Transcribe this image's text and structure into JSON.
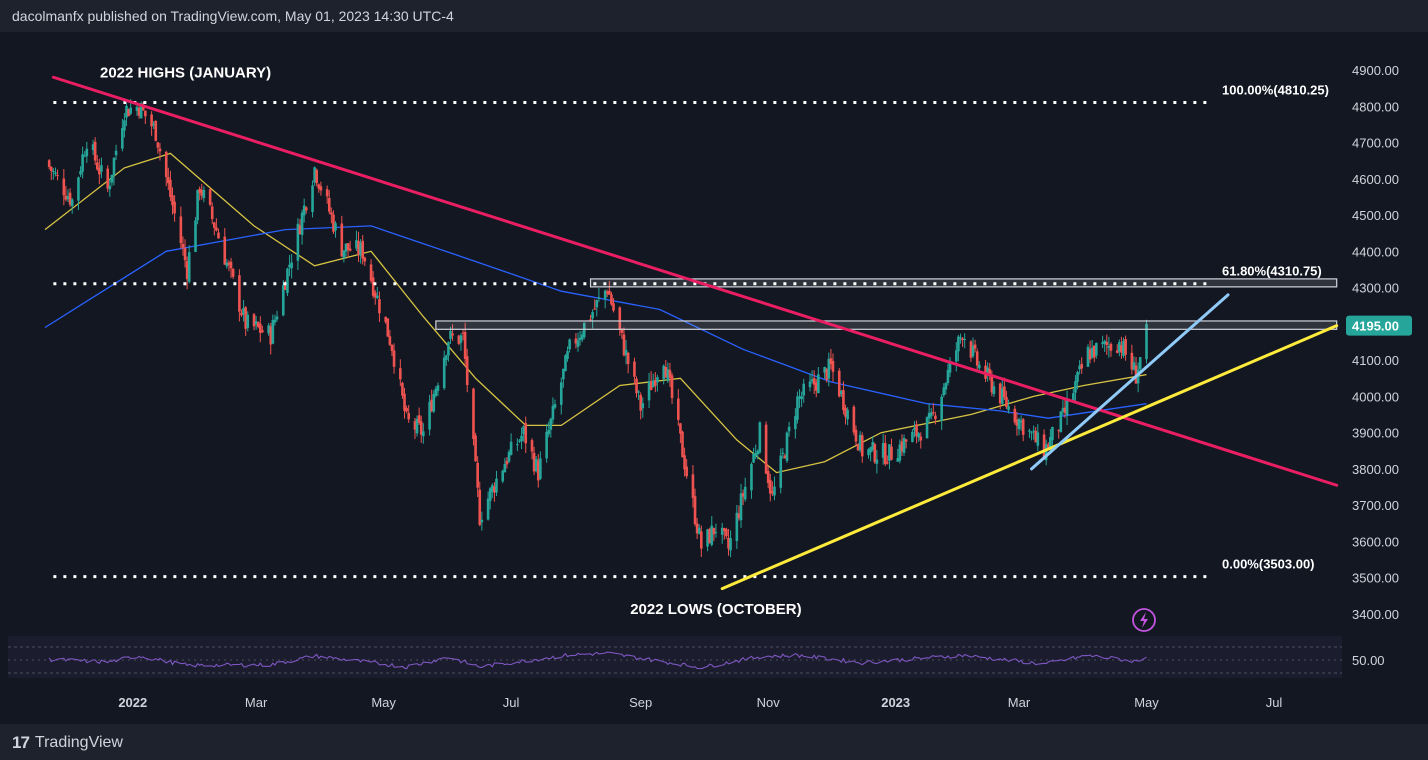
{
  "header": {
    "publisher": "dacolmanfx published on TradingView.com, May 01, 2023 14:30 UTC-4"
  },
  "footer": {
    "brand": "TradingView",
    "logo_icon": "tradingview-logo-icon"
  },
  "colors": {
    "background": "#131722",
    "up": "#26a69a",
    "down": "#ef5350",
    "ma50": "#d7c343",
    "ma200": "#2962ff",
    "downtrend": "#e91e63",
    "support": "#ffeb3b",
    "uptrend": "#90caf9",
    "rsi": "#7e57c2",
    "price_label": "#26a69a"
  },
  "chart_data": [
    {
      "type": "candlestick",
      "symbol_timeframe": "daily",
      "x_axis": {
        "start": "2021-11-20",
        "end": "2023-07-31",
        "ticks": [
          "2022",
          "Mar",
          "May",
          "Jul",
          "Sep",
          "Nov",
          "2023",
          "Mar",
          "May",
          "Jul"
        ]
      },
      "y_axis": {
        "min": 3350,
        "max": 4950,
        "ticks": [
          "4900.00",
          "4800.00",
          "4700.00",
          "4600.00",
          "4500.00",
          "4400.00",
          "4300.00",
          "4200.00",
          "4100.00",
          "4000.00",
          "3900.00",
          "3800.00",
          "3700.00",
          "3600.00",
          "3500.00",
          "3400.00"
        ]
      },
      "grid": false,
      "path_keypoints": [
        [
          "2021-11-20",
          4650
        ],
        [
          "2021-12-03",
          4540
        ],
        [
          "2021-12-10",
          4710
        ],
        [
          "2021-12-20",
          4570
        ],
        [
          "2021-12-28",
          4790
        ],
        [
          "2022-01-04",
          4800
        ],
        [
          "2022-01-12",
          4730
        ],
        [
          "2022-01-27",
          4350
        ],
        [
          "2022-02-02",
          4580
        ],
        [
          "2022-02-10",
          4460
        ],
        [
          "2022-02-24",
          4200
        ],
        [
          "2022-03-08",
          4170
        ],
        [
          "2022-03-29",
          4630
        ],
        [
          "2022-04-11",
          4410
        ],
        [
          "2022-04-21",
          4400
        ],
        [
          "2022-05-05",
          4140
        ],
        [
          "2022-05-12",
          3930
        ],
        [
          "2022-05-20",
          3900
        ],
        [
          "2022-06-01",
          4160
        ],
        [
          "2022-06-08",
          4160
        ],
        [
          "2022-06-16",
          3670
        ],
        [
          "2022-06-28",
          3820
        ],
        [
          "2022-07-07",
          3900
        ],
        [
          "2022-07-14",
          3790
        ],
        [
          "2022-07-29",
          4130
        ],
        [
          "2022-08-16",
          4300
        ],
        [
          "2022-09-01",
          3970
        ],
        [
          "2022-09-12",
          4110
        ],
        [
          "2022-09-30",
          3585
        ],
        [
          "2022-10-07",
          3640
        ],
        [
          "2022-10-13",
          3580
        ],
        [
          "2022-10-28",
          3900
        ],
        [
          "2022-11-03",
          3720
        ],
        [
          "2022-11-15",
          3990
        ],
        [
          "2022-12-01",
          4080
        ],
        [
          "2022-12-16",
          3850
        ],
        [
          "2022-12-29",
          3840
        ],
        [
          "2023-01-18",
          3930
        ],
        [
          "2023-02-02",
          4180
        ],
        [
          "2023-02-09",
          4090
        ],
        [
          "2023-02-24",
          3970
        ],
        [
          "2023-03-13",
          3850
        ],
        [
          "2023-03-22",
          3940
        ],
        [
          "2023-04-03",
          4120
        ],
        [
          "2023-04-18",
          4150
        ],
        [
          "2023-04-26",
          4060
        ],
        [
          "2023-05-01",
          4170
        ]
      ],
      "moving_averages": [
        {
          "period": 50,
          "keypoints": [
            [
              "2021-11-20",
              4460
            ],
            [
              "2021-12-28",
              4630
            ],
            [
              "2022-01-19",
              4670
            ],
            [
              "2022-02-28",
              4470
            ],
            [
              "2022-03-29",
              4360
            ],
            [
              "2022-04-25",
              4400
            ],
            [
              "2022-05-20",
              4220
            ],
            [
              "2022-06-14",
              4050
            ],
            [
              "2022-07-08",
              3920
            ],
            [
              "2022-07-25",
              3920
            ],
            [
              "2022-08-22",
              4030
            ],
            [
              "2022-09-20",
              4050
            ],
            [
              "2022-10-17",
              3880
            ],
            [
              "2022-11-05",
              3790
            ],
            [
              "2022-11-28",
              3820
            ],
            [
              "2022-12-25",
              3900
            ],
            [
              "2023-02-06",
              3950
            ],
            [
              "2023-03-08",
              4000
            ],
            [
              "2023-04-01",
              4030
            ],
            [
              "2023-05-01",
              4060
            ]
          ]
        },
        {
          "period": 200,
          "keypoints": [
            [
              "2021-11-20",
              4190
            ],
            [
              "2022-01-17",
              4400
            ],
            [
              "2022-03-15",
              4460
            ],
            [
              "2022-04-25",
              4470
            ],
            [
              "2022-06-10",
              4380
            ],
            [
              "2022-07-25",
              4290
            ],
            [
              "2022-09-10",
              4240
            ],
            [
              "2022-10-20",
              4130
            ],
            [
              "2022-12-01",
              4040
            ],
            [
              "2023-01-16",
              3980
            ],
            [
              "2023-02-20",
              3960
            ],
            [
              "2023-03-15",
              3940
            ],
            [
              "2023-05-01",
              3980
            ]
          ]
        }
      ],
      "trendlines": [
        {
          "name": "downtrend",
          "from": [
            "2021-11-24",
            4880
          ],
          "to": [
            "2023-07-31",
            3755
          ]
        },
        {
          "name": "support",
          "from": [
            "2022-10-10",
            3470
          ],
          "to": [
            "2023-07-31",
            4195
          ]
        },
        {
          "name": "uptrend",
          "from": [
            "2023-03-07",
            3800
          ],
          "to": [
            "2023-06-09",
            4280
          ]
        }
      ],
      "fibonacci_lines": [
        {
          "label": "100.00%(4810.25)",
          "value": 4810.25,
          "from": "2021-11-24",
          "to": "2023-05-31"
        },
        {
          "label": "61.80%(4310.75)",
          "value": 4310.75,
          "from": "2021-11-24",
          "to": "2023-05-31"
        },
        {
          "label": "0.00%(3503.00)",
          "value": 3503,
          "from": "2021-11-24",
          "to": "2023-05-31"
        }
      ],
      "zones": [
        {
          "from": "2022-08-08",
          "to": "2023-07-31",
          "low": 4302,
          "high": 4324
        },
        {
          "from": "2022-05-26",
          "to": "2023-07-31",
          "low": 4185,
          "high": 4208
        }
      ],
      "annotations": [
        {
          "text": "2022 HIGHS (JANUARY)",
          "date": "2021-12-05",
          "value": 4885
        },
        {
          "text": "2022 LOWS (OCTOBER)",
          "date": "2022-10-10",
          "value": 3405
        }
      ],
      "last_price": {
        "label": "4195.00",
        "value": 4195
      },
      "alert_icon": "lightning-icon"
    },
    {
      "type": "line",
      "name": "RSI",
      "y_axis": {
        "ticks": [
          "50.00"
        ],
        "overbought": 70,
        "oversold": 30
      },
      "keypoints": [
        [
          "2021-11-20",
          52
        ],
        [
          "2021-12-20",
          44
        ],
        [
          "2022-01-04",
          62
        ],
        [
          "2022-01-27",
          34
        ],
        [
          "2022-03-08",
          36
        ],
        [
          "2022-03-29",
          62
        ],
        [
          "2022-05-12",
          30
        ],
        [
          "2022-06-01",
          58
        ],
        [
          "2022-06-16",
          30
        ],
        [
          "2022-07-29",
          65
        ],
        [
          "2022-08-16",
          70
        ],
        [
          "2022-09-30",
          28
        ],
        [
          "2022-10-28",
          60
        ],
        [
          "2022-11-15",
          64
        ],
        [
          "2022-12-16",
          42
        ],
        [
          "2023-02-02",
          64
        ],
        [
          "2023-03-13",
          38
        ],
        [
          "2023-04-03",
          63
        ],
        [
          "2023-04-26",
          46
        ],
        [
          "2023-05-01",
          60
        ]
      ]
    }
  ]
}
